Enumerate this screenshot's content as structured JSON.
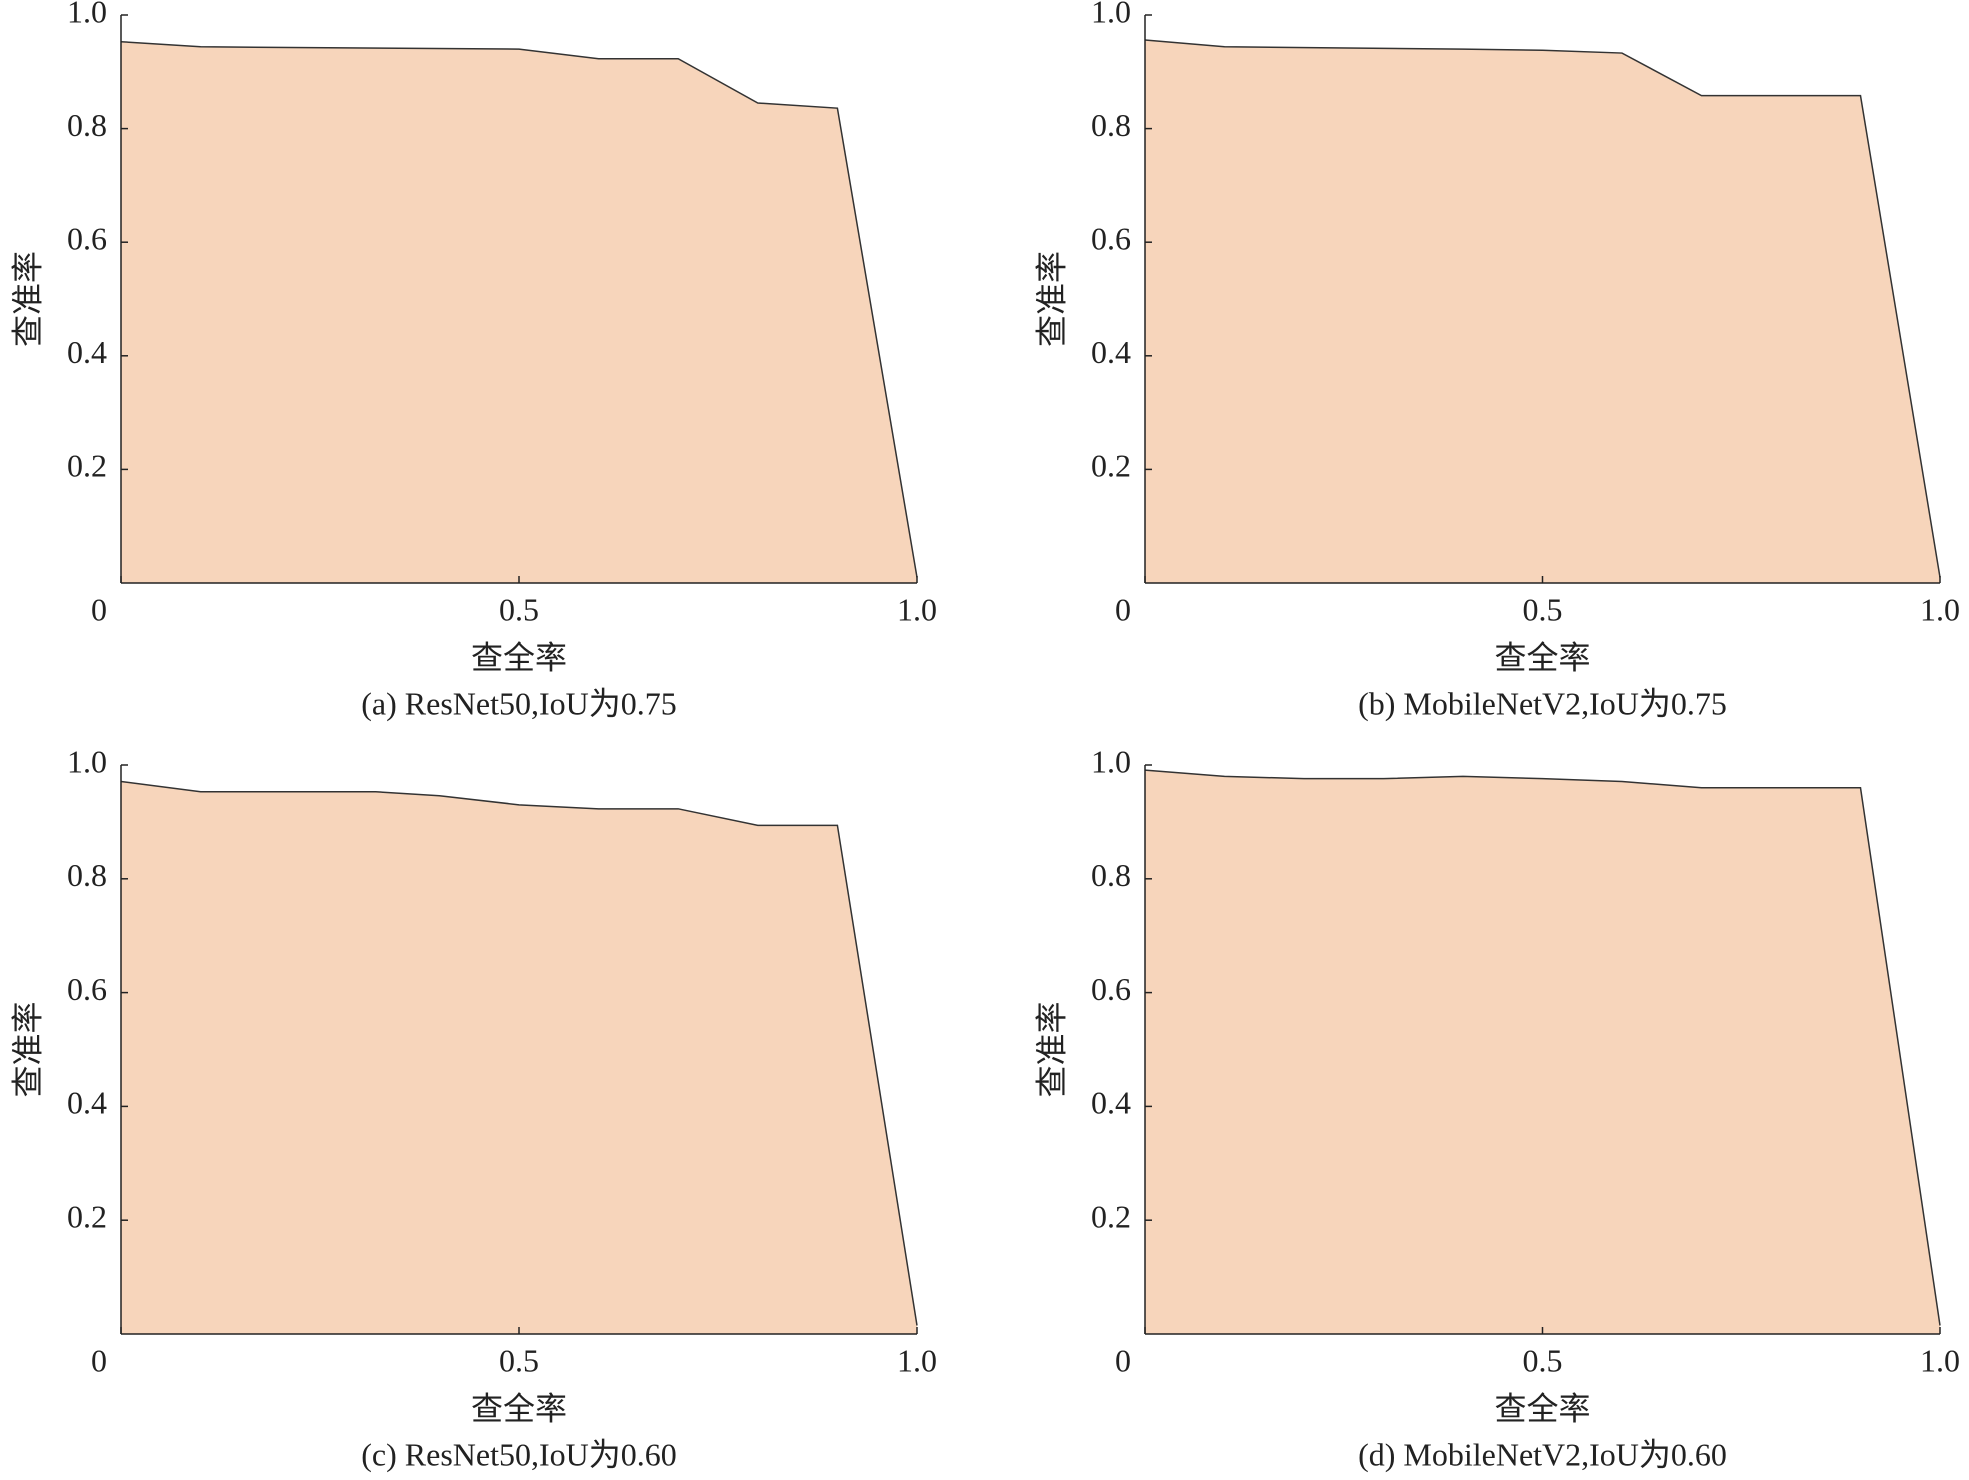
{
  "chart_data": [
    {
      "type": "area",
      "caption": "(a) ResNet50,IoU为0.75",
      "xlabel": "查全率",
      "ylabel": "查准率",
      "color": "#f7d5bb",
      "x": [
        0,
        0.1,
        0.5,
        0.6,
        0.7,
        0.8,
        0.9,
        1.0
      ],
      "values": [
        0.953,
        0.944,
        0.94,
        0.923,
        0.923,
        0.845,
        0.836,
        0.01
      ],
      "xlim": [
        0,
        1
      ],
      "ylim": [
        0,
        1
      ],
      "xticks": [
        0,
        0.5,
        {
          "value": 1,
          "label": "1.0"
        }
      ],
      "yticks": [
        0.2,
        0.4,
        0.6,
        0.8,
        {
          "value": 1,
          "label": "1.0"
        }
      ]
    },
    {
      "type": "area",
      "caption": "(b) MobileNetV2,IoU为0.75",
      "xlabel": "查全率",
      "ylabel": "查准率",
      "color": "#f7d5bb",
      "x": [
        0,
        0.1,
        0.4,
        0.5,
        0.6,
        0.7,
        0.9,
        1.0
      ],
      "values": [
        0.956,
        0.944,
        0.94,
        0.938,
        0.933,
        0.858,
        0.858,
        0.01
      ],
      "xlim": [
        0,
        1
      ],
      "ylim": [
        0,
        1
      ],
      "xticks": [
        0,
        0.5,
        {
          "value": 1,
          "label": "1.0"
        }
      ],
      "yticks": [
        0.2,
        0.4,
        0.6,
        0.8,
        {
          "value": 1,
          "label": "1.0"
        }
      ]
    },
    {
      "type": "area",
      "caption": "(c) ResNet50,IoU为0.60",
      "xlabel": "查全率",
      "ylabel": "查准率",
      "color": "#f7d5bb",
      "x": [
        0,
        0.1,
        0.32,
        0.4,
        0.5,
        0.6,
        0.7,
        0.8,
        0.9,
        1.0
      ],
      "values": [
        0.971,
        0.953,
        0.953,
        0.946,
        0.93,
        0.923,
        0.923,
        0.894,
        0.894,
        0.015
      ],
      "xlim": [
        0,
        1
      ],
      "ylim": [
        0,
        1
      ],
      "xticks": [
        0,
        0.5,
        {
          "value": 1,
          "label": "1.0"
        }
      ],
      "yticks": [
        0.2,
        0.4,
        0.6,
        0.8,
        {
          "value": 1,
          "label": "1.0"
        }
      ]
    },
    {
      "type": "area",
      "caption": "(d) MobileNetV2,IoU为0.60",
      "xlabel": "查全率",
      "ylabel": "查准率",
      "color": "#f7d5bb",
      "x": [
        0,
        0.1,
        0.2,
        0.3,
        0.4,
        0.5,
        0.6,
        0.7,
        0.9,
        1.0
      ],
      "values": [
        0.991,
        0.98,
        0.976,
        0.976,
        0.98,
        0.976,
        0.971,
        0.96,
        0.96,
        0.015
      ],
      "xlim": [
        0,
        1
      ],
      "ylim": [
        0,
        1
      ],
      "xticks": [
        0,
        0.5,
        {
          "value": 1,
          "label": "1.0"
        }
      ],
      "yticks": [
        0.2,
        0.4,
        0.6,
        0.8,
        {
          "value": 1,
          "label": "1.0"
        }
      ]
    }
  ]
}
